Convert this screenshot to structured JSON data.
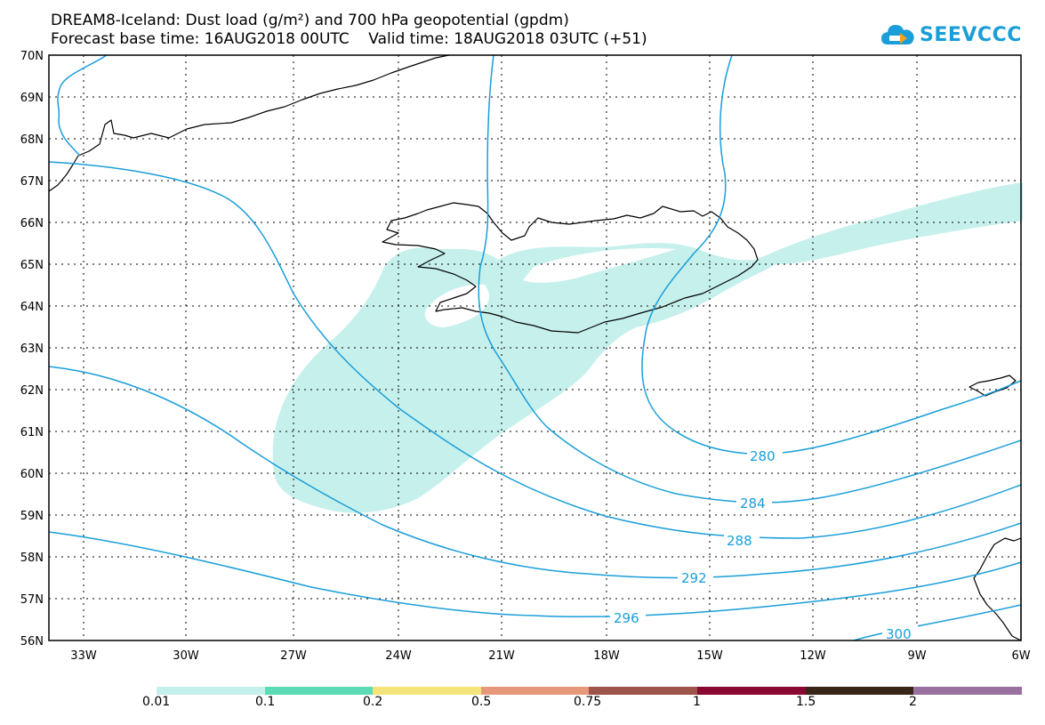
{
  "title": {
    "line1": "DREAM8-Iceland: Dust load (g/m²) and 700 hPa geopotential (gpdm)",
    "line2": "Forecast base time: 16AUG2018 00UTC    Valid time: 18AUG2018 03UTC (+51)"
  },
  "logo": {
    "text": "SEEVCCC",
    "icon": "cloud-logo-icon",
    "color": "#1a9ed9"
  },
  "map": {
    "lat_labels": [
      "70N",
      "69N",
      "68N",
      "67N",
      "66N",
      "65N",
      "64N",
      "63N",
      "62N",
      "61N",
      "60N",
      "59N",
      "58N",
      "57N",
      "56N"
    ],
    "lon_labels": [
      "33W",
      "30W",
      "27W",
      "24W",
      "21W",
      "18W",
      "15W",
      "12W",
      "9W",
      "6W"
    ],
    "contour_color": "#1a9ed9",
    "dust_color": "#c6f0ec",
    "contour_labels": [
      "280",
      "284",
      "288",
      "292",
      "296",
      "300"
    ]
  },
  "colorbar": {
    "labels": [
      "0.01",
      "0.1",
      "0.2",
      "0.5",
      "0.75",
      "1",
      "1.5",
      "2"
    ],
    "colors": [
      "#c6f0ec",
      "#5edbb4",
      "#f4e47a",
      "#e8987a",
      "#9e5448",
      "#880a32",
      "#3a2616",
      "#9a70a0"
    ]
  }
}
